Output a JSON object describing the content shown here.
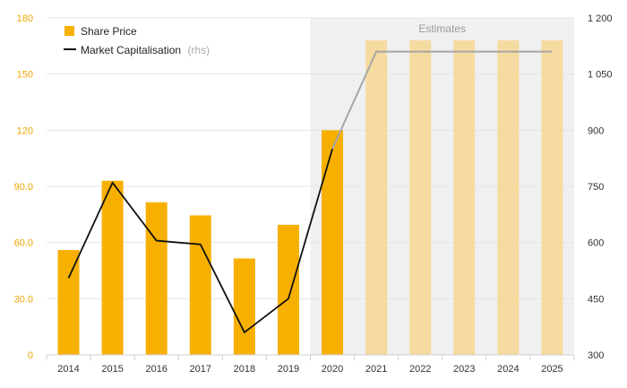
{
  "chart_data": {
    "type": "bar",
    "categories": [
      "2014",
      "2015",
      "2016",
      "2017",
      "2018",
      "2019",
      "2020",
      "2021",
      "2022",
      "2023",
      "2024",
      "2025"
    ],
    "estimate_start_index": 7,
    "estimate_band_label": "Estimates",
    "series": [
      {
        "name": "Share Price",
        "type": "bar",
        "axis": "left",
        "values": [
          56,
          93,
          81.5,
          74.5,
          51.5,
          69.5,
          120,
          168,
          168,
          168,
          168,
          168
        ]
      },
      {
        "name": "Market Capitalisation",
        "legend_suffix": "(rhs)",
        "type": "line",
        "axis": "right",
        "values": [
          505,
          760,
          605,
          595,
          360,
          450,
          850,
          1110,
          null,
          null,
          null,
          1110
        ]
      }
    ],
    "left_axis": {
      "min": 0,
      "max": 180,
      "ticks": [
        0,
        30,
        60,
        90,
        120,
        150,
        180
      ],
      "tick_labels": [
        "0",
        "30.0",
        "60.0",
        "90.0",
        "120",
        "150",
        "180"
      ]
    },
    "right_axis": {
      "min": 300,
      "max": 1200,
      "ticks": [
        300,
        450,
        600,
        750,
        900,
        1050,
        1200
      ],
      "tick_labels": [
        "300",
        "450",
        "600",
        "750",
        "900",
        "1 050",
        "1 200"
      ]
    },
    "legend_position": "top-left",
    "grid": "horizontal",
    "colors": {
      "bar": "#f7b000",
      "bar_estimate": "#f5dba0",
      "line": "#111111",
      "line_estimate": "#a6a6a6",
      "estimate_band": "#f0f0f0",
      "left_tick": "#f0a500"
    }
  }
}
